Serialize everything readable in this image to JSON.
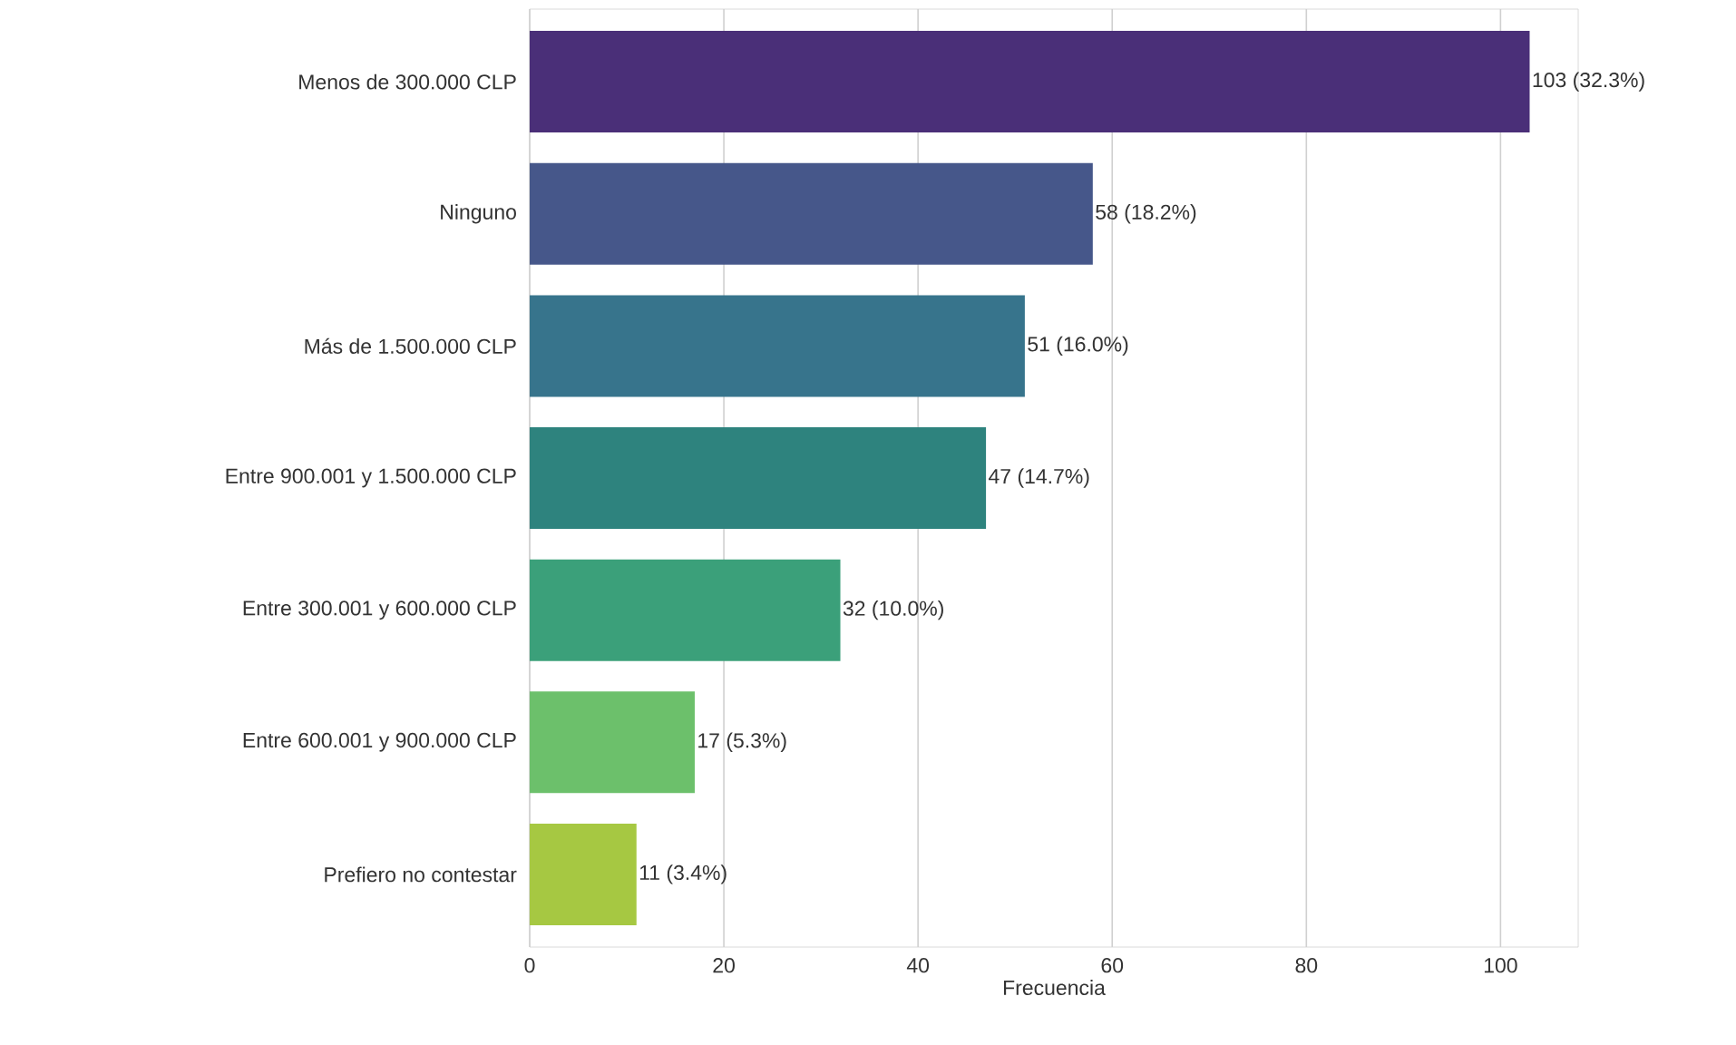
{
  "chart_data": {
    "type": "bar",
    "orientation": "horizontal",
    "xlabel": "Frecuencia",
    "categories": [
      "Menos de 300.000 CLP",
      "Ninguno",
      "Más de 1.500.000 CLP",
      "Entre 900.001 y 1.500.000 CLP",
      "Entre 300.001 y 600.000 CLP",
      "Entre 600.001 y 900.000 CLP",
      "Prefiero no contestar"
    ],
    "values": [
      103,
      58,
      51,
      47,
      32,
      17,
      11
    ],
    "colors": [
      "#4a2f78",
      "#46578a",
      "#37748c",
      "#2e837e",
      "#3ba07a",
      "#6cc06b",
      "#a6c842"
    ],
    "value_labels": [
      "103 (32.3%)",
      "58 (18.2%)",
      "51 (16.0%)",
      "47 (14.7%)",
      "32 (10.0%)",
      "17 (5.3%)",
      "11 (3.4%)"
    ],
    "xlim": [
      0,
      108
    ],
    "xticks": [
      0,
      20,
      40,
      60,
      80,
      100
    ],
    "grid": "x"
  }
}
